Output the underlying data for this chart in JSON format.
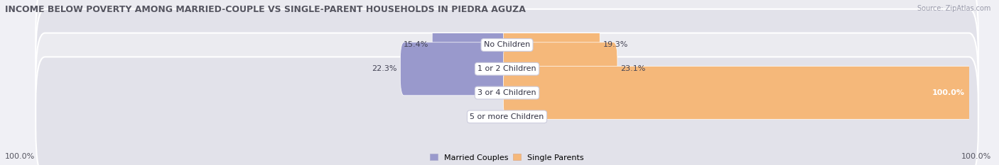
{
  "title": "INCOME BELOW POVERTY AMONG MARRIED-COUPLE VS SINGLE-PARENT HOUSEHOLDS IN PIEDRA AGUZA",
  "source": "Source: ZipAtlas.com",
  "categories": [
    "No Children",
    "1 or 2 Children",
    "3 or 4 Children",
    "5 or more Children"
  ],
  "married_values": [
    15.4,
    22.3,
    0.0,
    0.0
  ],
  "single_values": [
    19.3,
    23.1,
    100.0,
    0.0
  ],
  "married_color": "#9999cc",
  "single_color": "#f5b87a",
  "row_bg_colors": [
    "#ebebf0",
    "#e2e2ea",
    "#ebebf0",
    "#e2e2ea"
  ],
  "max_value": 100.0,
  "axis_left_label": "100.0%",
  "axis_right_label": "100.0%",
  "legend_married": "Married Couples",
  "legend_single": "Single Parents",
  "title_fontsize": 9,
  "label_fontsize": 8,
  "source_fontsize": 7,
  "tick_fontsize": 8,
  "bg_color": "#f0f0f5",
  "center_label_bg": "#ffffff",
  "center_label_border": "#ccccdd"
}
